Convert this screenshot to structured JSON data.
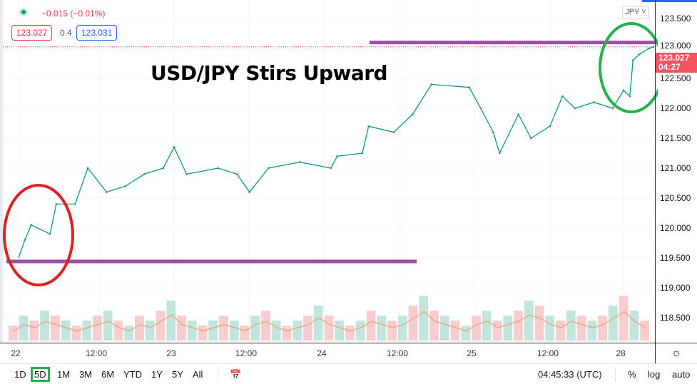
{
  "header": {
    "change": "−0.015 (−0.01%)",
    "bid": "123.027",
    "spread": "0.4",
    "ask": "123.031",
    "currency_button": "JPY ˅",
    "live_indicator_color": "#089981"
  },
  "price_tag": {
    "price": "123.027",
    "countdown": "04:27"
  },
  "bottom": {
    "ranges": [
      "1D",
      "5D",
      "1M",
      "3M",
      "6M",
      "YTD",
      "1Y",
      "5Y",
      "All"
    ],
    "selected_range": "5D",
    "clock": "04:45:33 (UTC)",
    "percent": "%",
    "log": "log",
    "auto": "auto"
  },
  "chart_data": {
    "type": "line",
    "title": "USD/JPY Stirs Upward",
    "y_ticks": [
      "123.500",
      "123.000",
      "122.500",
      "122.000",
      "121.500",
      "121.000",
      "120.500",
      "120.000",
      "119.500",
      "119.000",
      "118.500"
    ],
    "ylim": [
      118.2,
      123.55
    ],
    "x_ticks": [
      "22",
      "12:00",
      "23",
      "12:00",
      "24",
      "12:00",
      "25",
      "12:00",
      "28"
    ],
    "days": [
      "22",
      "23",
      "24",
      "25",
      "28"
    ],
    "grid": true,
    "series": [
      {
        "color": "#089981",
        "points": [
          [
            "22 00:00",
            119.5
          ],
          [
            "22 01:00",
            119.8
          ],
          [
            "22 02:00",
            120.05
          ],
          [
            "22 05:00",
            119.9
          ],
          [
            "22 06:00",
            120.4
          ],
          [
            "22 09:00",
            120.4
          ],
          [
            "22 11:00",
            121.0
          ],
          [
            "22 14:00",
            120.6
          ],
          [
            "22 17:00",
            120.7
          ],
          [
            "22 20:00",
            120.9
          ],
          [
            "22 23:00",
            121.0
          ],
          [
            "23 00:00",
            121.35
          ],
          [
            "23 02:00",
            120.9
          ],
          [
            "23 07:00",
            121.0
          ],
          [
            "23 10:00",
            120.9
          ],
          [
            "23 12:00",
            120.6
          ],
          [
            "23 15:00",
            121.0
          ],
          [
            "23 20:00",
            121.1
          ],
          [
            "24 01:00",
            121.0
          ],
          [
            "24 02:00",
            121.2
          ],
          [
            "24 06:00",
            121.25
          ],
          [
            "24 07:00",
            121.7
          ],
          [
            "24 11:00",
            121.6
          ],
          [
            "24 14:00",
            121.9
          ],
          [
            "24 17:00",
            122.4
          ],
          [
            "24 23:00",
            122.35
          ],
          [
            "25 01:00",
            122.0
          ],
          [
            "25 03:00",
            121.6
          ],
          [
            "25 04:00",
            121.25
          ],
          [
            "25 07:00",
            121.9
          ],
          [
            "25 09:00",
            121.5
          ],
          [
            "25 12:00",
            121.7
          ],
          [
            "25 14:00",
            122.2
          ],
          [
            "25 16:00",
            122.0
          ],
          [
            "25 19:00",
            122.1
          ],
          [
            "25 22:00",
            122.0
          ],
          [
            "28 00:00",
            122.3
          ],
          [
            "28 01:00",
            122.2
          ],
          [
            "28 01:30",
            122.8
          ],
          [
            "28 02:30",
            122.9
          ],
          [
            "28 04:00",
            123.0
          ],
          [
            "28 04:45",
            123.027
          ]
        ]
      }
    ],
    "volume": [
      3,
      5,
      4,
      6,
      5,
      4,
      3,
      4,
      5,
      6,
      4,
      3,
      5,
      4,
      6,
      8,
      5,
      4,
      3,
      4,
      5,
      4,
      3,
      5,
      6,
      4,
      3,
      4,
      5,
      7,
      5,
      4,
      3,
      4,
      6,
      5,
      4,
      5,
      7,
      9,
      6,
      5,
      4,
      3,
      5,
      6,
      4,
      5,
      6,
      8,
      7,
      5,
      4,
      6,
      5,
      4,
      5,
      7,
      9,
      6,
      4
    ],
    "volume_color": "#f0a070",
    "current_price_line": 123.027,
    "annotations": {
      "resistance_line": 123.1,
      "support_line": 119.44,
      "line_color": "#9b4dab",
      "circle_start_color": "#e02020",
      "circle_end_color": "#22b14c"
    }
  }
}
